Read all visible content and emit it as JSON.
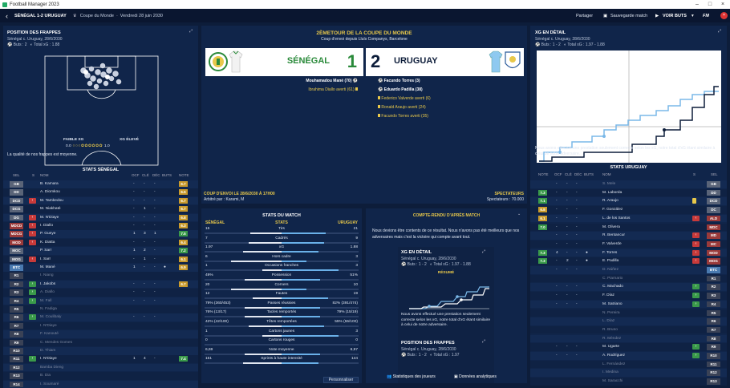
{
  "window": {
    "title": "Football Manager 2023"
  },
  "topbar": {
    "match": "SÉNÉGAL 1-2 URUGUAY",
    "competition": "Coupe du Monde",
    "date": "Vendredi 28 juin 2030",
    "share": "Partager",
    "save": "Sauvegarde match",
    "next": "VOIR BUTS"
  },
  "left": {
    "title": "POSITION DES FRAPPES",
    "match_line": "Sénégal c. Uruguay, 28/6/2030",
    "stats": "Buts : 2",
    "xg": "Total xG : 1.88",
    "xg_low": "FAIBLE XG",
    "xg_high": "XG ÉLEVÉ",
    "xg_min": "0.0",
    "xg_max": "1.0",
    "caption": "La qualité de nos frappes est moyenne.",
    "stats_title": "STATS SÉNÉGAL",
    "cols": [
      "SEL",
      "S",
      "NOM",
      "OCF",
      "CLÉ",
      "DÉC",
      "BUTS",
      "NOTE"
    ],
    "players": [
      {
        "pos": "GB",
        "pc": "#5a6478",
        "name": "B. Kamara",
        "ocf": "-",
        "cle": "-",
        "dec": "-",
        "buts": "",
        "note": "6.7",
        "nc": "#c99a2c",
        "arr": ""
      },
      {
        "pos": "DD",
        "pc": "#5a6478",
        "name": "A. Diomkou",
        "ocf": "-",
        "cle": "-",
        "dec": "-",
        "buts": "",
        "note": "6.5",
        "nc": "#c99a2c",
        "arr": ""
      },
      {
        "pos": "DCD",
        "pc": "#5a6478",
        "name": "M. Tambedou",
        "ocf": "-",
        "cle": "-",
        "dec": "-",
        "buts": "",
        "note": "6.7",
        "nc": "#c99a2c",
        "arr": "in"
      },
      {
        "pos": "DCG",
        "pc": "#5a6478",
        "name": "M. Niakhaté",
        "ocf": "-",
        "cle": "1",
        "dec": "-",
        "buts": "",
        "note": "6.7",
        "nc": "#c99a2c",
        "arr": ""
      },
      {
        "pos": "DG",
        "pc": "#5a6478",
        "name": "M. N'Diaye",
        "ocf": "-",
        "cle": "-",
        "dec": "-",
        "buts": "",
        "note": "6.8",
        "nc": "#c99a2c",
        "arr": "out"
      },
      {
        "pos": "MDCD",
        "pc": "#9a3a3a",
        "name": "I. Diallo",
        "ocf": "-",
        "cle": "-",
        "dec": "-",
        "buts": "",
        "note": "6.3",
        "nc": "#c99a2c",
        "arr": "in"
      },
      {
        "pos": "MDCG",
        "pc": "#9a3a3a",
        "name": "P. Gueye",
        "ocf": "1",
        "cle": "3",
        "dec": "1",
        "buts": "",
        "note": "7.5",
        "nc": "#3a9a4a",
        "arr": "out"
      },
      {
        "pos": "MOD",
        "pc": "#9a3a3a",
        "name": "K. Diatta",
        "ocf": "-",
        "cle": "-",
        "dec": "-",
        "buts": "",
        "note": "6.4",
        "nc": "#c99a2c",
        "arr": "in"
      },
      {
        "pos": "MOC",
        "pc": "#5a6478",
        "name": "P. Sarr",
        "ocf": "1",
        "cle": "2",
        "dec": "-",
        "buts": "",
        "note": "7.2",
        "nc": "#3a9a4a",
        "arr": ""
      },
      {
        "pos": "MOG",
        "pc": "#5a6478",
        "name": "I. Sarr",
        "ocf": "-",
        "cle": "1",
        "dec": "-",
        "buts": "",
        "note": "6.1",
        "nc": "#c99a2c",
        "arr": "in"
      },
      {
        "pos": "BTC",
        "pc": "#4a7ab0",
        "name": "M. Mané",
        "ocf": "1",
        "cle": "-",
        "dec": "-",
        "buts": "●",
        "note": "6.9",
        "nc": "#c99a2c",
        "arr": ""
      },
      {
        "pos": "R1",
        "pc": "#3a4256",
        "name": "I. Niang",
        "ocf": "",
        "cle": "",
        "dec": "",
        "buts": "",
        "note": "",
        "nc": "",
        "arr": ""
      },
      {
        "pos": "R2",
        "pc": "#3a4256",
        "name": "I. Jakobs",
        "ocf": "-",
        "cle": "-",
        "dec": "-",
        "buts": "",
        "note": "6.7",
        "nc": "#c99a2c",
        "arr": "sub"
      },
      {
        "pos": "R3",
        "pc": "#3a4256",
        "name": "A. Diallo",
        "ocf": "-",
        "cle": "-",
        "dec": "-",
        "buts": "",
        "note": "",
        "nc": "",
        "arr": "sub"
      },
      {
        "pos": "R4",
        "pc": "#3a4256",
        "name": "M. Fall",
        "ocf": "-",
        "cle": "-",
        "dec": "-",
        "buts": "",
        "note": "",
        "nc": "",
        "arr": "sub"
      },
      {
        "pos": "R5",
        "pc": "#3a4256",
        "name": "N. Fadiga",
        "ocf": "",
        "cle": "",
        "dec": "",
        "buts": "",
        "note": "",
        "nc": "",
        "arr": ""
      },
      {
        "pos": "R6",
        "pc": "#3a4256",
        "name": "M. Coulibaly",
        "ocf": "-",
        "cle": "-",
        "dec": "-",
        "buts": "",
        "note": "",
        "nc": "",
        "arr": "sub"
      },
      {
        "pos": "R7",
        "pc": "#3a4256",
        "name": "I. N'Diaye",
        "ocf": "",
        "cle": "",
        "dec": "",
        "buts": "",
        "note": "",
        "nc": "",
        "arr": ""
      },
      {
        "pos": "R8",
        "pc": "#3a4256",
        "name": "F. Kanouté",
        "ocf": "",
        "cle": "",
        "dec": "",
        "buts": "",
        "note": "",
        "nc": "",
        "arr": ""
      },
      {
        "pos": "R9",
        "pc": "#3a4256",
        "name": "C. Mendes Gomes",
        "ocf": "",
        "cle": "",
        "dec": "",
        "buts": "",
        "note": "",
        "nc": "",
        "arr": ""
      },
      {
        "pos": "R10",
        "pc": "#3a4256",
        "name": "D. Thiam",
        "ocf": "",
        "cle": "",
        "dec": "",
        "buts": "",
        "note": "",
        "nc": "",
        "arr": ""
      },
      {
        "pos": "R11",
        "pc": "#3a4256",
        "name": "I. N'Diaye",
        "ocf": "1",
        "cle": "4",
        "dec": "-",
        "buts": "",
        "note": "7.4",
        "nc": "#3a9a4a",
        "arr": "sub"
      },
      {
        "pos": "R12",
        "pc": "#3a4256",
        "name": "Bamba Dieng",
        "ocf": "",
        "cle": "",
        "dec": "",
        "buts": "",
        "note": "",
        "nc": "",
        "arr": ""
      },
      {
        "pos": "R13",
        "pc": "#3a4256",
        "name": "B. Dia",
        "ocf": "",
        "cle": "",
        "dec": "",
        "buts": "",
        "note": "",
        "nc": "",
        "arr": ""
      },
      {
        "pos": "R14",
        "pc": "#3a4256",
        "name": "I. Soumaré",
        "ocf": "",
        "cle": "",
        "dec": "",
        "buts": "",
        "note": "",
        "nc": "",
        "arr": ""
      }
    ]
  },
  "center": {
    "round": "2ÈMETOUR DE LA COUPE DU MONDE",
    "kickoff": "Coup d'envoi depuis Lluís Companys, Barcelone",
    "home": "SÉNÉGAL",
    "away": "URUGUAY",
    "home_score": "1",
    "away_score": "2",
    "home_events": [
      {
        "t": "Mouhamadou Mané (70)",
        "c": "#ffffff"
      },
      {
        "t": "Ibrahima Diallo averti (61)",
        "c": "#e8c84a"
      }
    ],
    "away_events": [
      {
        "t": "Facundo Torres (3)",
        "c": "#ffffff"
      },
      {
        "t": "Eduardo Padilla (38)",
        "c": "#ffffff"
      },
      {
        "t": "Federico Valverde averti (6)",
        "c": "#e8c84a"
      },
      {
        "t": "Ronald Araujo averti (24)",
        "c": "#e8c84a"
      },
      {
        "t": "Facundo Torres averti (35)",
        "c": "#e8c84a"
      }
    ],
    "kickoff_time": "COUP D'ENVOI LE 28/6/2030 À 17H00",
    "referee": "Arbitré par : Karami, M",
    "spect_label": "SPECTATEURS",
    "spect": "Spectateurs : 70.000"
  },
  "stats": {
    "title": "STATS DU MATCH",
    "home": "SÉNÉGAL",
    "mid": "STATS",
    "away": "URUGUAY",
    "button": "Personnaliser",
    "rows": [
      {
        "l": "Tirs",
        "h": "15",
        "a": "21",
        "hv": 15,
        "av": 21
      },
      {
        "l": "Cadrés",
        "h": "7",
        "a": "9",
        "hv": 7,
        "av": 9
      },
      {
        "l": "xG",
        "h": "1.97",
        "a": "1.88",
        "hv": 1.97,
        "av": 1.88
      },
      {
        "l": "Hors cadre",
        "h": "6",
        "a": "3",
        "hv": 6,
        "av": 3
      },
      {
        "l": "Occasions franches",
        "h": "1",
        "a": "3",
        "hv": 1,
        "av": 3
      },
      {
        "l": "Possession",
        "h": "49%",
        "a": "51%",
        "hv": 49,
        "av": 51
      },
      {
        "l": "Corners",
        "h": "20",
        "a": "10",
        "hv": 20,
        "av": 10
      },
      {
        "l": "Fautes",
        "h": "12",
        "a": "19",
        "hv": 12,
        "av": 19
      },
      {
        "l": "Passes réussies",
        "h": "79% (360/453)",
        "a": "82% (391/474)",
        "hv": 79,
        "av": 82
      },
      {
        "l": "Tacles remportés",
        "h": "76% (13/17)",
        "a": "79% (15/19)",
        "hv": 76,
        "av": 79
      },
      {
        "l": "Têtes remportées",
        "h": "42% (42/100)",
        "a": "55% (55/100)",
        "hv": 42,
        "av": 55
      },
      {
        "l": "Cartons jaunes",
        "h": "1",
        "a": "3",
        "hv": 1,
        "av": 3
      },
      {
        "l": "Cartons rouges",
        "h": "0",
        "a": "0",
        "hv": 0,
        "av": 0
      },
      {
        "l": "Note moyenne",
        "h": "6,69",
        "a": "6,97",
        "hv": 6.69,
        "av": 6.97
      },
      {
        "l": "Sprints à haute intensité",
        "h": "151",
        "a": "144",
        "hv": 151,
        "av": 144
      }
    ]
  },
  "report": {
    "title": "COMPTE-RENDU D'APRÈS MATCH",
    "text": "Nous devions être contents de ce résultat. Nous n'avons pas été meilleurs que nos adversaires mais c'est la victoire qui compte avant tout.",
    "xg_title": "XG EN DÉTAIL",
    "match_line": "Sénégal c. Uruguay, 28/6/2030",
    "stats": "Buts : 1 - 2",
    "xg": "Total xG : 1.97 - 1.88",
    "resume": "RÉSUMÉ",
    "xg_text": "Nous avons effectué une prestation seulement correcte selon les xG, notre total d'xG étant similaire à celui de notre adversaire.",
    "pos_title": "POSITION DES FRAPPES",
    "stats2": "Buts : 1 - 2",
    "xg2": "Total xG : 1.97",
    "link1": "Statistiques des joueurs",
    "link2": "Données analytiques"
  },
  "right": {
    "title": "XG EN DÉTAIL",
    "match_line": "Sénégal c. Uruguay, 28/6/2030",
    "stats": "Buts : 1 - 2",
    "xg": "Total xG : 1.97 - 1.88",
    "caption": "Nous avons effectué une prestation seulement correcte selon les xG, notre total d'xG étant similaire à celui de notre adversaire.",
    "stats_title": "STATS URUGUAY",
    "cols": [
      "NOTE",
      "OCF",
      "CLÉ",
      "DÉC",
      "BUTS",
      "NOM",
      "S",
      "SEL"
    ],
    "players": [
      {
        "pos": "GB",
        "pc": "#5a6478",
        "name": "S. Mele",
        "ocf": "-",
        "cle": "-",
        "dec": "-",
        "buts": "",
        "note": "",
        "nc": "",
        "arr": ""
      },
      {
        "pos": "DD",
        "pc": "#5a6478",
        "name": "M. Laborda",
        "ocf": "-",
        "cle": "-",
        "dec": "-",
        "buts": "",
        "note": "7.3",
        "nc": "#3a9a4a",
        "arr": ""
      },
      {
        "pos": "DCD",
        "pc": "#5a6478",
        "name": "R. Araujo",
        "ocf": "-",
        "cle": "-",
        "dec": "-",
        "buts": "",
        "note": "7.1",
        "nc": "#3a9a4a",
        "arr": "card"
      },
      {
        "pos": "DC",
        "pc": "#5a6478",
        "name": "F. González",
        "ocf": "-",
        "cle": "-",
        "dec": "-",
        "buts": "",
        "note": "6.8",
        "nc": "#c99a2c",
        "arr": ""
      },
      {
        "pos": "ALD",
        "pc": "#9a3a3a",
        "name": "L. de los Santos",
        "ocf": "-",
        "cle": "-",
        "dec": "-",
        "buts": "",
        "note": "6.1",
        "nc": "#c99a2c",
        "arr": "out"
      },
      {
        "pos": "MDC",
        "pc": "#9a3a3a",
        "name": "M. Olivera",
        "ocf": "-",
        "cle": "-",
        "dec": "-",
        "buts": "",
        "note": "7.0",
        "nc": "#3a9a4a",
        "arr": ""
      },
      {
        "pos": "MD",
        "pc": "#9a3a3a",
        "name": "R. Bentancur",
        "ocf": "-",
        "cle": "-",
        "dec": "-",
        "buts": "",
        "note": "",
        "nc": "",
        "arr": "out"
      },
      {
        "pos": "MC",
        "pc": "#9a3a3a",
        "name": "F. Valverde",
        "ocf": "-",
        "cle": "-",
        "dec": "-",
        "buts": "",
        "note": "",
        "nc": "",
        "arr": "out"
      },
      {
        "pos": "MOD",
        "pc": "#9a3a3a",
        "name": "F. Torres",
        "ocf": "4",
        "cle": "-",
        "dec": "-",
        "buts": "●",
        "note": "7.3",
        "nc": "#3a9a4a",
        "arr": "out"
      },
      {
        "pos": "MOG",
        "pc": "#9a3a3a",
        "name": "E. Padilla",
        "ocf": "-",
        "cle": "2",
        "dec": "-",
        "buts": "●",
        "note": "7.3",
        "nc": "#3a9a4a",
        "arr": "out"
      },
      {
        "pos": "BTC",
        "pc": "#4a7ab0",
        "name": "D. Núñez",
        "ocf": "-",
        "cle": "-",
        "dec": "-",
        "buts": "",
        "note": "",
        "nc": "",
        "arr": ""
      },
      {
        "pos": "R1",
        "pc": "#3a4256",
        "name": "C. Piarnario",
        "ocf": "",
        "cle": "",
        "dec": "",
        "buts": "",
        "note": "",
        "nc": "",
        "arr": ""
      },
      {
        "pos": "R2",
        "pc": "#3a4256",
        "name": "C. Machado",
        "ocf": "-",
        "cle": "-",
        "dec": "-",
        "buts": "",
        "note": "",
        "nc": "",
        "arr": "sub"
      },
      {
        "pos": "R3",
        "pc": "#3a4256",
        "name": "F. Díaz",
        "ocf": "-",
        "cle": "-",
        "dec": "-",
        "buts": "",
        "note": "",
        "nc": "",
        "arr": "sub"
      },
      {
        "pos": "R4",
        "pc": "#3a4256",
        "name": "M. Satriano",
        "ocf": "-",
        "cle": "-",
        "dec": "-",
        "buts": "",
        "note": "",
        "nc": "",
        "arr": "sub"
      },
      {
        "pos": "R5",
        "pc": "#3a4256",
        "name": "N. Pereira",
        "ocf": "",
        "cle": "",
        "dec": "",
        "buts": "",
        "note": "",
        "nc": "",
        "arr": ""
      },
      {
        "pos": "R6",
        "pc": "#3a4256",
        "name": "L. Díaz",
        "ocf": "",
        "cle": "",
        "dec": "",
        "buts": "",
        "note": "",
        "nc": "",
        "arr": ""
      },
      {
        "pos": "R7",
        "pc": "#3a4256",
        "name": "R. Bruno",
        "ocf": "",
        "cle": "",
        "dec": "",
        "buts": "",
        "note": "",
        "nc": "",
        "arr": ""
      },
      {
        "pos": "R8",
        "pc": "#3a4256",
        "name": "R. Méndez",
        "ocf": "",
        "cle": "",
        "dec": "",
        "buts": "",
        "note": "",
        "nc": "",
        "arr": ""
      },
      {
        "pos": "R9",
        "pc": "#3a4256",
        "name": "M. Ugarte",
        "ocf": "-",
        "cle": "-",
        "dec": "-",
        "buts": "",
        "note": "",
        "nc": "",
        "arr": "sub"
      },
      {
        "pos": "R10",
        "pc": "#3a4256",
        "name": "A. Rodríguez",
        "ocf": "-",
        "cle": "-",
        "dec": "-",
        "buts": "",
        "note": "",
        "nc": "",
        "arr": "sub"
      },
      {
        "pos": "R11",
        "pc": "#3a4256",
        "name": "L. Fernández",
        "ocf": "",
        "cle": "",
        "dec": "",
        "buts": "",
        "note": "",
        "nc": "",
        "arr": ""
      },
      {
        "pos": "R12",
        "pc": "#3a4256",
        "name": "I. Medina",
        "ocf": "",
        "cle": "",
        "dec": "",
        "buts": "",
        "note": "",
        "nc": "",
        "arr": ""
      },
      {
        "pos": "R13",
        "pc": "#3a4256",
        "name": "M. Saracchi",
        "ocf": "",
        "cle": "",
        "dec": "",
        "buts": "",
        "note": "",
        "nc": "",
        "arr": ""
      }
    ]
  }
}
